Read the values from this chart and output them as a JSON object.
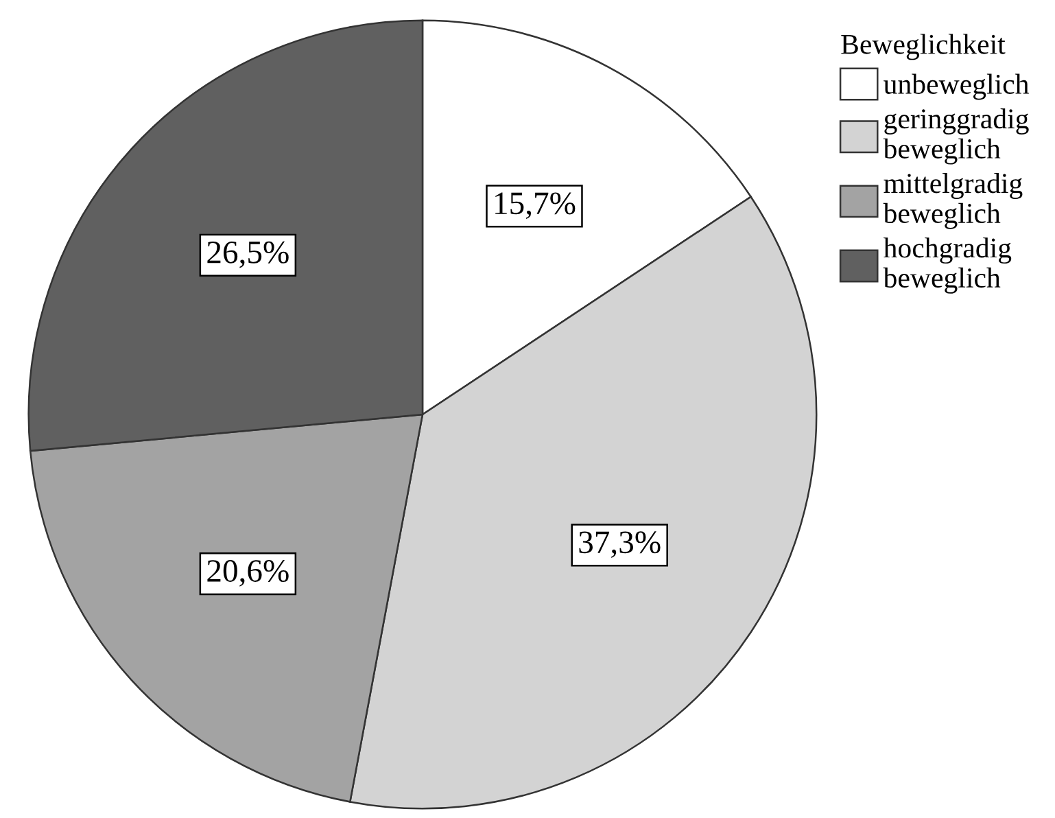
{
  "chart_data": {
    "type": "pie",
    "legend_title": "Beweglichkeit",
    "categories": [
      "unbeweglich",
      "geringgradig\nbeweglich",
      "mittelgradig\nbeweglich",
      "hochgradig\nbeweglich"
    ],
    "values": [
      15.7,
      37.3,
      20.6,
      26.5
    ],
    "value_labels": [
      "15,7%",
      "37,3%",
      "20,6%",
      "26,5%"
    ],
    "colors": [
      "#ffffff",
      "#d3d3d3",
      "#a3a3a3",
      "#606060"
    ],
    "legend": "top right"
  }
}
